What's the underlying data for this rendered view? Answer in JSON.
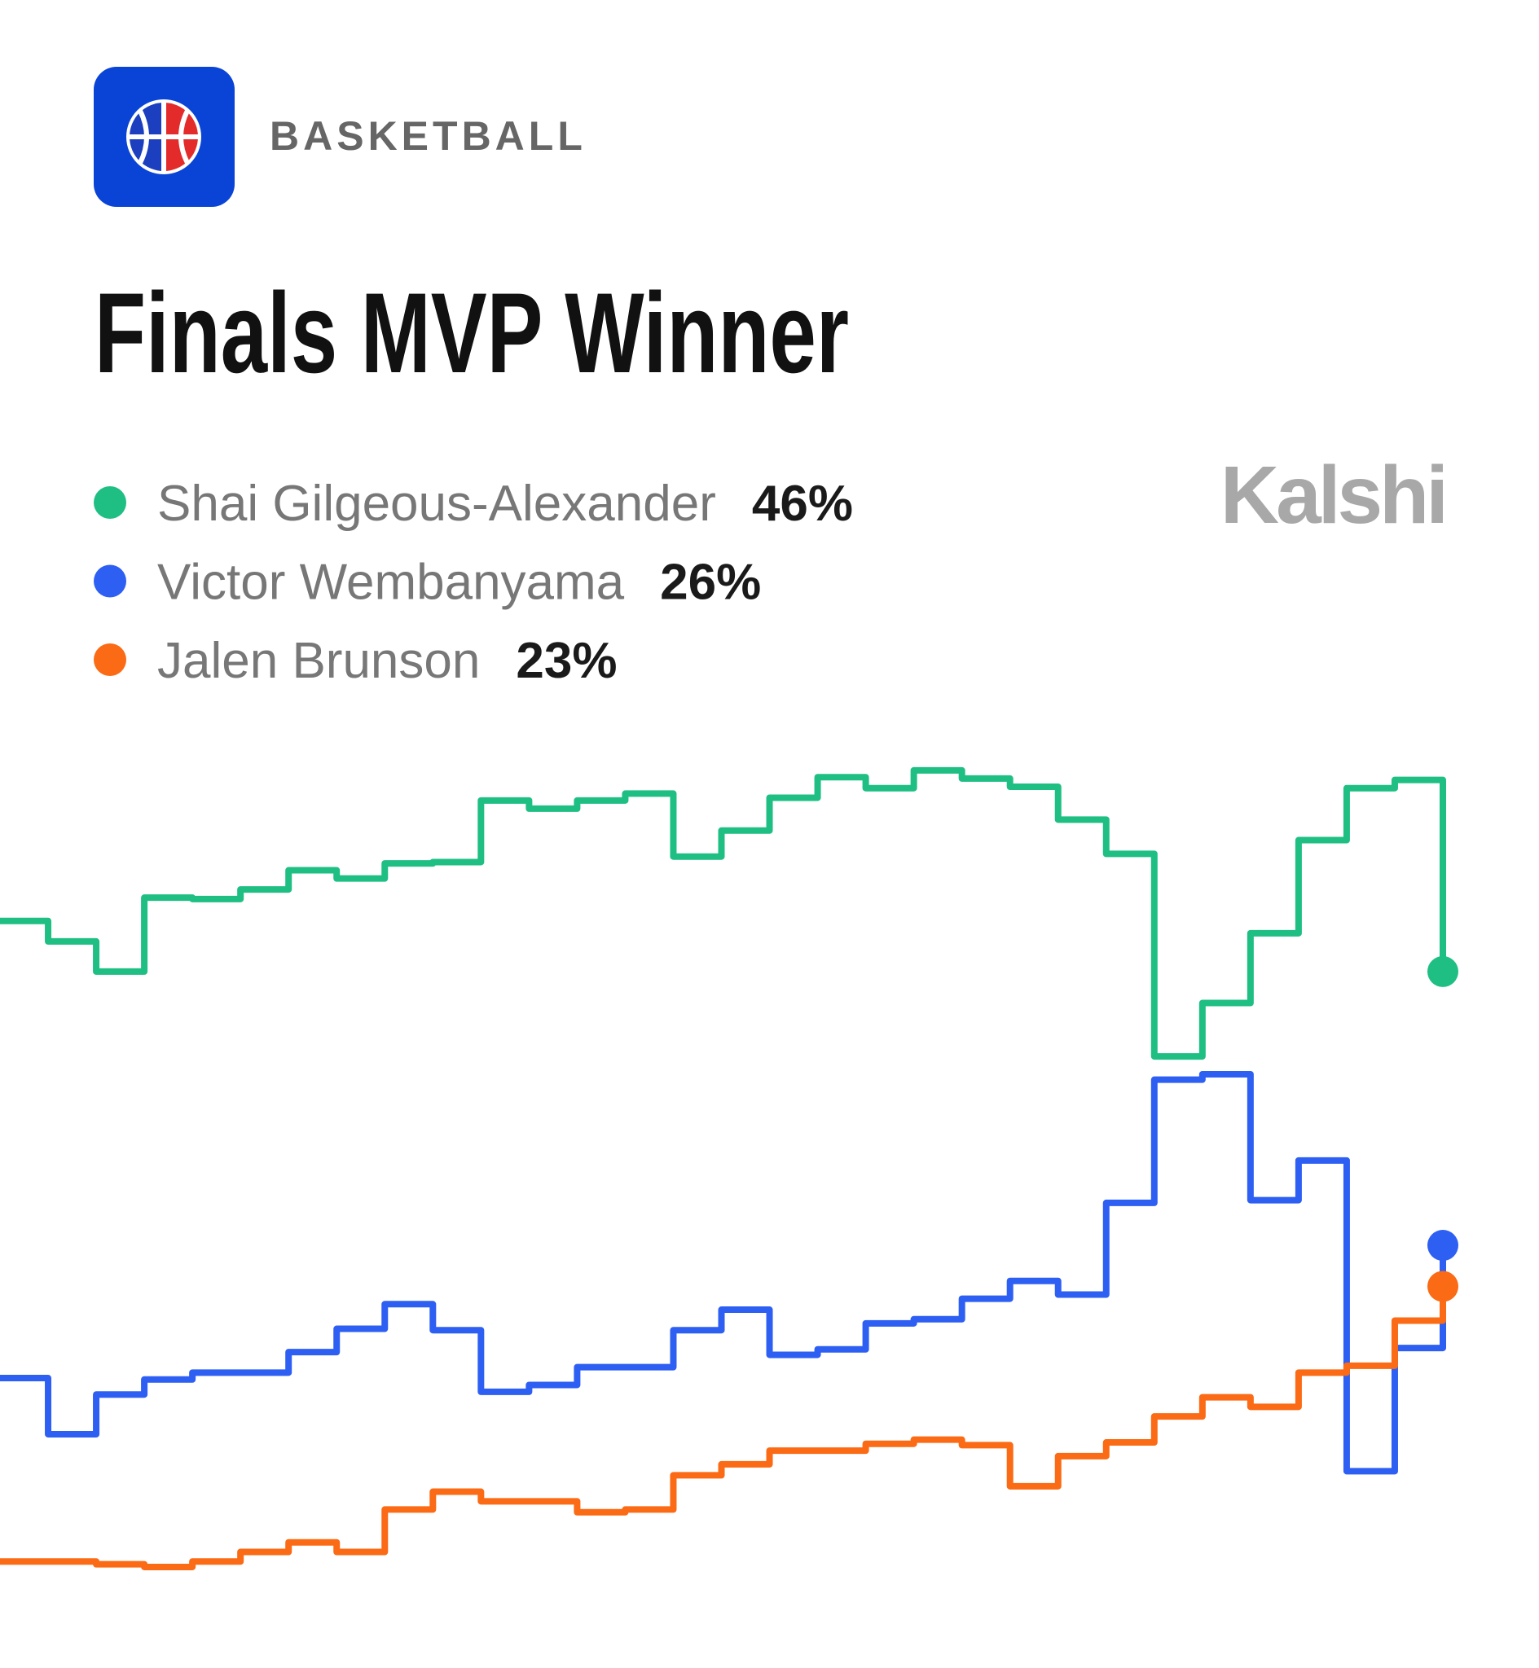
{
  "header": {
    "category": "BASKETBALL",
    "brand": "Kalshi"
  },
  "chart_data": {
    "type": "step-line",
    "title": "Finals MVP Winner",
    "ylim": [
      0,
      62
    ],
    "series": [
      {
        "name": "Shai Gilgeous-Alexander",
        "color": "#1fbf84",
        "last_label": "46%",
        "values": [
          49.7,
          48.2,
          46,
          51.4,
          51.3,
          52,
          53.4,
          52.8,
          53.9,
          54,
          58.5,
          57.9,
          58.5,
          59,
          54.4,
          56.3,
          58.7,
          60.2,
          59.4,
          60.7,
          60.1,
          59.5,
          57.1,
          54.6,
          39.8,
          43.7,
          48.8,
          55.6,
          59.4,
          60,
          46
        ]
      },
      {
        "name": "Victor Wembanyama",
        "color": "#2e5ff3",
        "last_label": "26%",
        "values": [
          16.3,
          12.2,
          15.1,
          16.2,
          16.7,
          16.7,
          18.2,
          19.9,
          21.7,
          19.8,
          15.3,
          15.8,
          17.1,
          17.1,
          19.8,
          21.3,
          18,
          18.4,
          20.3,
          20.6,
          22.1,
          23.4,
          22.4,
          29.1,
          38.1,
          38.5,
          29.3,
          32.2,
          9.5,
          18.5,
          26
        ]
      },
      {
        "name": "Jalen Brunson",
        "color": "#fb6a14",
        "last_label": "23%",
        "values": [
          2.9,
          2.9,
          2.7,
          2.5,
          2.9,
          3.6,
          4.3,
          3.6,
          6.7,
          8,
          7.3,
          7.3,
          6.5,
          6.7,
          9.2,
          10,
          11,
          11,
          11.5,
          11.8,
          11.4,
          8.4,
          10.6,
          11.6,
          13.5,
          14.9,
          14.2,
          16.7,
          17.2,
          20.5,
          23
        ]
      }
    ]
  }
}
